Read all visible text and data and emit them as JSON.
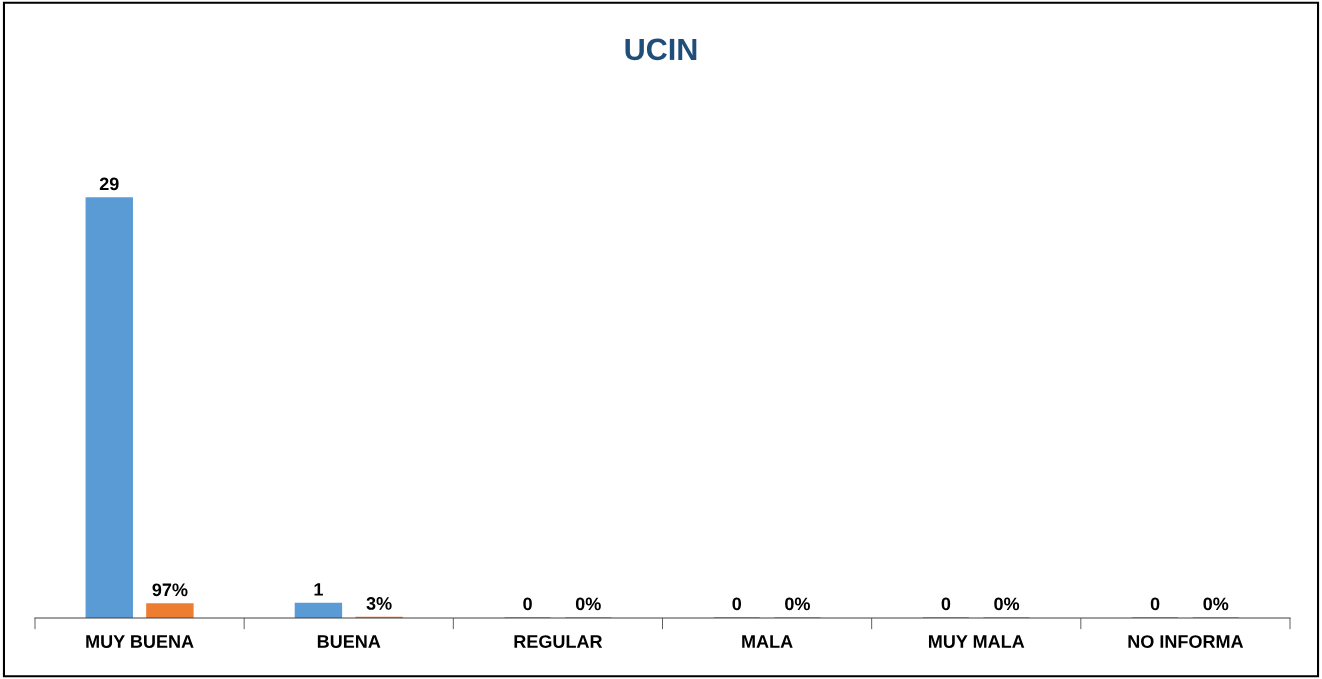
{
  "chart_data": {
    "type": "bar",
    "title": "UCIN",
    "categories": [
      "MUY BUENA",
      "BUENA",
      "REGULAR",
      "MALA",
      "MUY MALA",
      "NO INFORMA"
    ],
    "series": [
      {
        "color": "#5b9bd5",
        "values": [
          29,
          1,
          0,
          0,
          0,
          0
        ],
        "value_labels": [
          "29",
          "1",
          "0",
          "0",
          "0",
          "0"
        ]
      },
      {
        "color": "#ed7d31",
        "values": [
          0.97,
          0.03,
          0,
          0,
          0,
          0
        ],
        "value_labels": [
          "97%",
          "3%",
          "0%",
          "0%",
          "0%",
          "0%"
        ]
      }
    ],
    "grid": false,
    "legend": false
  }
}
